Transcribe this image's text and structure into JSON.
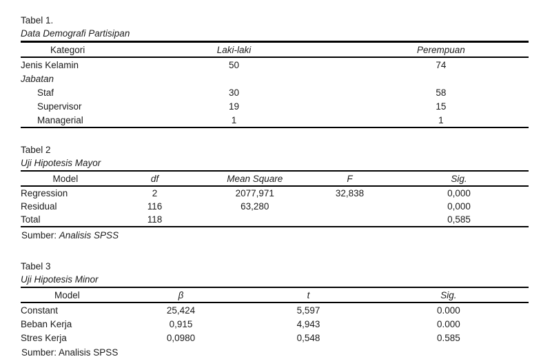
{
  "page": {
    "background": "#ffffff",
    "text_color": "#1a1a1a",
    "rule_color": "#000000"
  },
  "tables": [
    {
      "title": "Tabel 1.",
      "subtitle": "Data Demografi Partisipan",
      "columns": [
        {
          "label": "Kategori",
          "italic": false
        },
        {
          "label": "Laki-laki",
          "italic": true
        },
        {
          "label": "Perempuan",
          "italic": true
        }
      ],
      "col_widths": [
        "18.5%",
        "47%",
        "34.5%"
      ],
      "rows": [
        {
          "cells": [
            "Jenis Kelamin",
            "50",
            "74"
          ]
        },
        {
          "cells": [
            "Jabatan",
            "",
            ""
          ],
          "italic_label": true
        },
        {
          "cells": [
            "Staf",
            "30",
            "58"
          ],
          "indent": true
        },
        {
          "cells": [
            "Supervisor",
            "19",
            "15"
          ],
          "indent": true
        },
        {
          "cells": [
            "Managerial",
            "1",
            "1"
          ],
          "indent": true
        }
      ],
      "bottom_border": true,
      "source": null
    },
    {
      "title": "Tabel 2",
      "subtitle": "Uji Hipotesis Mayor",
      "columns": [
        {
          "label": "Model",
          "italic": false
        },
        {
          "label": "df",
          "italic": true
        },
        {
          "label": "Mean Square",
          "italic": true
        },
        {
          "label": "F",
          "italic": true
        },
        {
          "label": "Sig.",
          "italic": true
        }
      ],
      "col_widths": [
        "17.6%",
        "17.6%",
        "21.8%",
        "15.6%",
        "27.4%"
      ],
      "rows": [
        {
          "cells": [
            "Regression",
            "2",
            "2077,971",
            "32,838",
            "0,000"
          ]
        },
        {
          "cells": [
            "Residual",
            "116",
            "63,280",
            "",
            "0,000"
          ]
        },
        {
          "cells": [
            "Total",
            "118",
            "",
            "",
            "0,585"
          ]
        }
      ],
      "bottom_border": true,
      "source": {
        "prefix": "Sumber: ",
        "text": "Analisis SPSS",
        "italic": true
      }
    },
    {
      "title": "Tabel 3",
      "subtitle": "Uji Hipotesis Minor",
      "columns": [
        {
          "label": "Model",
          "italic": false
        },
        {
          "label": "β",
          "italic": true
        },
        {
          "label": "t",
          "italic": true
        },
        {
          "label": "Sig.",
          "italic": true
        }
      ],
      "col_widths": [
        "18.3%",
        "26.5%",
        "23.7%",
        "31.5%"
      ],
      "rows": [
        {
          "cells": [
            "Constant",
            "25,424",
            "5,597",
            "0.000"
          ]
        },
        {
          "cells": [
            "Beban Kerja",
            "0,915",
            "4,943",
            "0.000"
          ]
        },
        {
          "cells": [
            "Stres Kerja",
            "0,0980",
            "0,548",
            "0.585"
          ]
        }
      ],
      "bottom_border": false,
      "source": {
        "prefix": "Sumber: ",
        "text": "Analisis SPSS",
        "italic": false
      }
    }
  ]
}
